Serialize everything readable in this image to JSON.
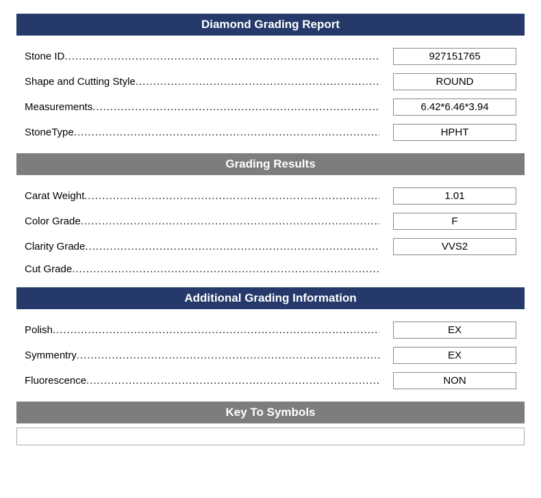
{
  "colors": {
    "navy": "#253a6a",
    "gray": "#7d7d7d",
    "border": "#888888",
    "text": "#000000",
    "bg": "#ffffff",
    "header_text": "#ffffff"
  },
  "typography": {
    "header_fontsize": 17,
    "header_weight": "bold",
    "body_fontsize": 15,
    "font_family": "Arial"
  },
  "layout": {
    "value_box_width": 180
  },
  "sections": {
    "main": {
      "title": "Diamond Grading Report",
      "rows": [
        {
          "label": "Stone ID",
          "value": "927151765"
        },
        {
          "label": "Shape and Cutting Style",
          "value": "ROUND"
        },
        {
          "label": "Measurements",
          "value": "6.42*6.46*3.94"
        },
        {
          "label": "StoneType",
          "value": "HPHT"
        }
      ]
    },
    "grading": {
      "title": "Grading Results",
      "rows": [
        {
          "label": "Carat Weight",
          "value": "1.01"
        },
        {
          "label": "Color Grade",
          "value": "F"
        },
        {
          "label": "Clarity Grade",
          "value": "VVS2"
        },
        {
          "label": "Cut Grade",
          "value": ""
        }
      ]
    },
    "additional": {
      "title": "Additional Grading Information",
      "rows": [
        {
          "label": "Polish",
          "value": "EX"
        },
        {
          "label": "Symmentry",
          "value": "EX"
        },
        {
          "label": "Fluorescence",
          "value": "NON"
        }
      ]
    },
    "symbols": {
      "title": "Key To Symbols"
    }
  }
}
